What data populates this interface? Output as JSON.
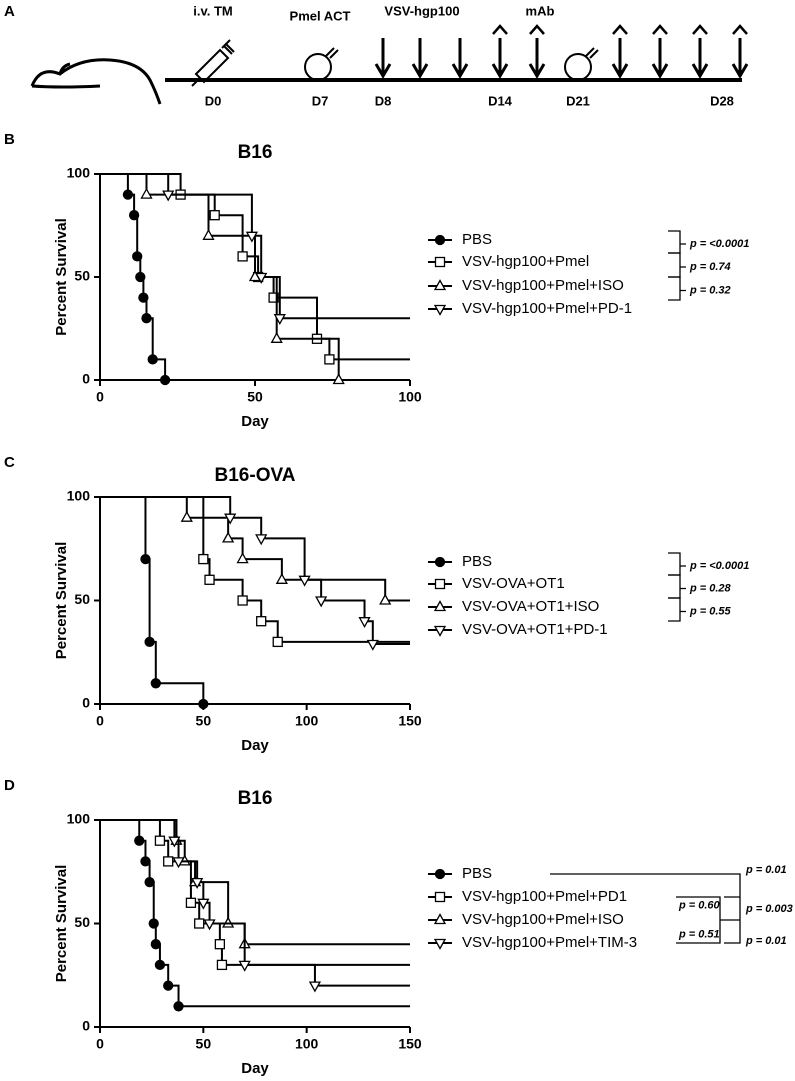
{
  "timeline": {
    "panel": "A",
    "labels": [
      "i.v. TM",
      "Pmel ACT",
      "VSV-hgp100",
      "mAb"
    ],
    "days": [
      "D0",
      "D7",
      "D8",
      "D14",
      "D21",
      "D28"
    ]
  },
  "chart_data": [
    {
      "type": "survival",
      "panel": "B",
      "title": "B16",
      "y_label": "Percent Survival",
      "x_label": "Day",
      "xlim": [
        0,
        100
      ],
      "xticks": [
        0,
        50,
        100
      ],
      "ylim": [
        0,
        100
      ],
      "yticks": [
        0,
        50,
        100
      ],
      "series": [
        {
          "name": "PBS",
          "color": "#000000",
          "marker": "circle",
          "x": [
            0,
            9,
            11,
            12,
            13,
            14,
            15,
            17,
            21
          ],
          "values": [
            100,
            90,
            80,
            60,
            50,
            40,
            30,
            10,
            0
          ]
        },
        {
          "name": "VSV-hgp100+Pmel",
          "color": "#000000",
          "marker": "square",
          "x": [
            0,
            26,
            37,
            46,
            51,
            56,
            70,
            74,
            100
          ],
          "values": [
            100,
            90,
            80,
            60,
            50,
            40,
            20,
            10,
            10
          ]
        },
        {
          "name": "VSV-hgp100+Pmel+ISO",
          "color": "#000000",
          "marker": "triangle-up",
          "x": [
            0,
            15,
            35,
            50,
            57,
            77
          ],
          "values": [
            100,
            90,
            70,
            50,
            20,
            0
          ]
        },
        {
          "name": "VSV-hgp100+Pmel+PD-1",
          "color": "#000000",
          "marker": "triangle-down",
          "x": [
            0,
            22,
            49,
            52,
            58,
            100
          ],
          "values": [
            100,
            90,
            70,
            50,
            30,
            30
          ]
        }
      ],
      "annotations": [
        "p = <0.0001",
        "p = 0.74",
        "p = 0.32"
      ]
    },
    {
      "type": "survival",
      "panel": "C",
      "title": "B16-OVA",
      "y_label": "Percent Survival",
      "x_label": "Day",
      "xlim": [
        0,
        150
      ],
      "xticks": [
        0,
        50,
        100,
        150
      ],
      "ylim": [
        0,
        100
      ],
      "yticks": [
        0,
        50,
        100
      ],
      "series": [
        {
          "name": "PBS",
          "color": "#000000",
          "marker": "circle",
          "x": [
            0,
            22,
            24,
            27,
            50
          ],
          "values": [
            100,
            70,
            30,
            10,
            0
          ]
        },
        {
          "name": "VSV-OVA+OT1",
          "color": "#000000",
          "marker": "square",
          "x": [
            0,
            50,
            53,
            69,
            78,
            86,
            150
          ],
          "values": [
            100,
            70,
            60,
            50,
            40,
            30,
            30
          ]
        },
        {
          "name": "VSV-OVA+OT1+ISO",
          "color": "#000000",
          "marker": "triangle-up",
          "x": [
            0,
            42,
            62,
            69,
            88,
            138,
            150
          ],
          "values": [
            100,
            90,
            80,
            70,
            60,
            50,
            50
          ]
        },
        {
          "name": "VSV-OVA+OT1+PD-1",
          "color": "#000000",
          "marker": "triangle-down",
          "x": [
            0,
            63,
            78,
            99,
            107,
            128,
            132,
            150
          ],
          "values": [
            100,
            90,
            80,
            60,
            50,
            40,
            29,
            29
          ]
        }
      ],
      "annotations": [
        "p = <0.0001",
        "p = 0.28",
        "p = 0.55"
      ]
    },
    {
      "type": "survival",
      "panel": "D",
      "title": "B16",
      "y_label": "Percent Survival",
      "x_label": "Day",
      "xlim": [
        0,
        150
      ],
      "xticks": [
        0,
        50,
        100,
        150
      ],
      "ylim": [
        0,
        100
      ],
      "yticks": [
        0,
        50,
        100
      ],
      "series": [
        {
          "name": "PBS",
          "color": "#000000",
          "marker": "circle",
          "x": [
            0,
            19,
            22,
            24,
            26,
            27,
            29,
            33,
            38,
            150
          ],
          "values": [
            100,
            90,
            80,
            70,
            50,
            40,
            30,
            20,
            10,
            10
          ]
        },
        {
          "name": "VSV-hgp100+Pmel+PD1",
          "color": "#000000",
          "marker": "square",
          "x": [
            0,
            29,
            33,
            44,
            48,
            58,
            59,
            150
          ],
          "values": [
            100,
            90,
            80,
            60,
            50,
            40,
            30,
            30
          ]
        },
        {
          "name": "VSV-hgp100+Pmel+ISO",
          "color": "#000000",
          "marker": "triangle-up",
          "x": [
            0,
            37,
            41,
            46,
            62,
            70,
            150
          ],
          "values": [
            100,
            90,
            80,
            70,
            50,
            40,
            40
          ]
        },
        {
          "name": "VSV-hgp100+Pmel+TIM-3",
          "color": "#000000",
          "marker": "triangle-down",
          "x": [
            0,
            36,
            38,
            47,
            50,
            53,
            70,
            104,
            150
          ],
          "values": [
            100,
            90,
            80,
            70,
            60,
            50,
            30,
            20,
            20
          ]
        }
      ],
      "annotations": [
        "p = 0.60",
        "p = 0.51",
        "p = 0.01",
        "p = 0.003",
        "p = 0.01"
      ]
    }
  ]
}
